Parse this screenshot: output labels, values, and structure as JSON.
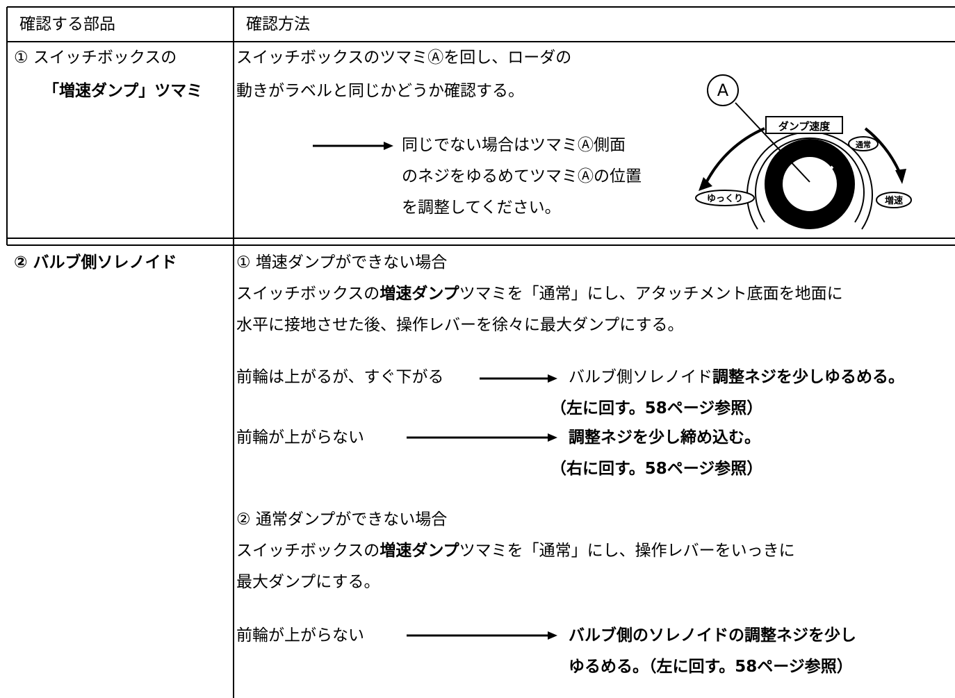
{
  "header": {
    "part": "確認する部品",
    "method": "確認方法"
  },
  "rows": [
    {
      "part": [
        "① スイッチボックスの",
        "「増速ダンプ」ツマミ"
      ],
      "method": {
        "lines": [
          "スイッチボックスのツマミⒶを回し、ローダの",
          "動きがラベルと同じかどうか確認する。"
        ],
        "result": [
          "同じでない場合はツマミⒶ側面",
          "のネジをゆるめてツマミⒶの位置",
          "を調整してください。"
        ]
      },
      "diagram": {
        "knob": "A",
        "title": "ダンプ速度",
        "normal": "通常",
        "slow": "ゆっくり",
        "fast": "増速"
      }
    },
    {
      "part": "② バルブ側ソレノイド",
      "case1": {
        "heading": "① 増速ダンプができない場合",
        "line1": [
          "スイッチボックスの",
          "増速ダンプ",
          "ツマミを「通常」にし、アタッチメント底面を地面に"
        ],
        "line2": "水平に接地させた後、操作レバーを徐々に最大ダンプにする。",
        "checks": [
          {
            "symptom": "前輪は上がるが、すぐ下がる",
            "action": [
              "バルブ側ソレノイド",
              "調整ネジを少しゆるめる。"
            ],
            "note": "（左に回す。58ページ参照）"
          },
          {
            "symptom": "前輪が上がらない",
            "action": "調整ネジを少し締め込む。",
            "note": "（右に回す。58ページ参照）"
          }
        ]
      },
      "case2": {
        "heading": "② 通常ダンプができない場合",
        "line1": [
          "スイッチボックスの",
          "増速ダンプ",
          "ツマミを「通常」にし、操作レバーをいっきに"
        ],
        "line2": "最大ダンプにする。",
        "check": {
          "symptom": "前輪が上がらない",
          "action": [
            "バルブ側のソレノイドの調整ネジを少し",
            "ゆるめる。（左に回す。58ページ参照）"
          ]
        }
      }
    }
  ]
}
